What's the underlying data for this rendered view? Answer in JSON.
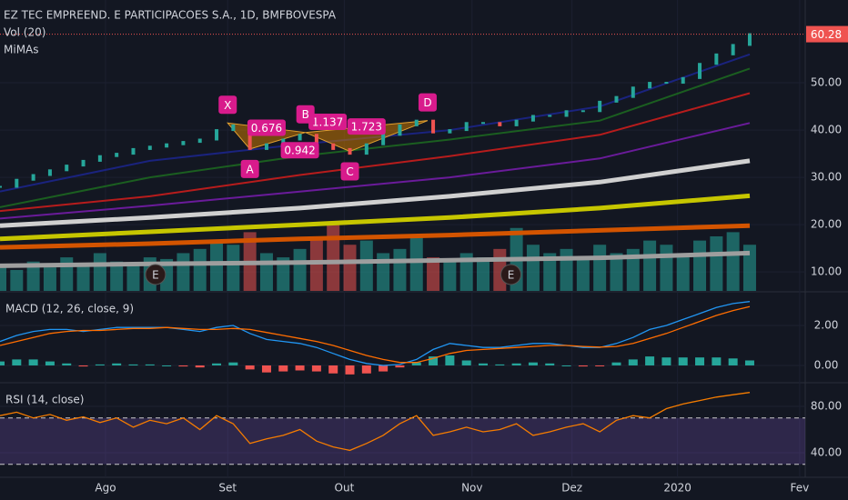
{
  "chart_data": [
    {
      "type": "candlestick",
      "title": "EZ TEC EMPREEND. E PARTICIPACOES S.A., 1D, BMFBOVESPA",
      "volume_label": "Vol (20)",
      "ma_label": "MiMAs",
      "x": [
        0,
        3,
        6,
        9,
        12,
        15,
        18,
        21,
        24,
        27,
        30,
        33,
        36,
        39,
        42,
        45,
        48,
        51,
        54,
        57,
        60,
        63,
        66,
        69,
        72,
        75,
        78,
        81,
        84,
        87,
        90,
        93,
        96,
        99,
        102,
        105,
        108,
        111,
        114,
        117,
        120,
        123,
        126,
        129,
        132,
        135
      ],
      "values": [
        28,
        29.5,
        30.5,
        31.5,
        32.5,
        33.5,
        34.5,
        35,
        36,
        36.5,
        37,
        37.5,
        38,
        40,
        41,
        36,
        37,
        38,
        39,
        37,
        36,
        35,
        37,
        39,
        41,
        42,
        39.5,
        40,
        41.5,
        41.5,
        41,
        42,
        43,
        43,
        44,
        44,
        46,
        47,
        49,
        50,
        50,
        51,
        54,
        56,
        58,
        60.28
      ],
      "up_color": "#26a69a",
      "down_color": "#ef5350",
      "volume": [
        30,
        25,
        35,
        28,
        40,
        30,
        45,
        35,
        30,
        40,
        38,
        45,
        50,
        60,
        55,
        70,
        45,
        40,
        50,
        65,
        80,
        55,
        60,
        45,
        50,
        65,
        40,
        35,
        45,
        40,
        50,
        75,
        55,
        45,
        50,
        40,
        55,
        45,
        50,
        60,
        55,
        45,
        60,
        65,
        70,
        55
      ],
      "vlim": [
        0,
        130
      ],
      "ma": [
        {
          "color": "#1a237e",
          "x": [
            0,
            27,
            54,
            81,
            108,
            135
          ],
          "values": [
            27,
            33.5,
            37,
            40,
            45,
            56
          ]
        },
        {
          "color": "#1b5e20",
          "x": [
            0,
            27,
            54,
            81,
            108,
            135
          ],
          "values": [
            23.7,
            30,
            34.5,
            38,
            42,
            53
          ]
        },
        {
          "color": "#b71c1c",
          "x": [
            0,
            27,
            54,
            81,
            108,
            135
          ],
          "values": [
            22.9,
            26,
            30.5,
            34.5,
            39,
            47.8
          ]
        },
        {
          "color": "#6a1b9a",
          "x": [
            0,
            27,
            54,
            81,
            108,
            135
          ],
          "values": [
            21.3,
            24,
            27,
            30,
            34,
            41.5
          ]
        },
        {
          "color": "#d0d0d0",
          "x": [
            0,
            27,
            54,
            81,
            108,
            135
          ],
          "values": [
            19.8,
            21.5,
            23.5,
            26,
            29,
            33.5
          ]
        },
        {
          "color": "#c6c600",
          "x": [
            0,
            27,
            54,
            81,
            108,
            135
          ],
          "values": [
            17,
            18.5,
            20,
            21.5,
            23.5,
            26.1
          ]
        },
        {
          "color": "#d35400",
          "x": [
            0,
            27,
            54,
            81,
            108,
            135
          ],
          "values": [
            15.2,
            16,
            17,
            17.8,
            18.8,
            19.8
          ]
        },
        {
          "color": "#9e9e9e",
          "x": [
            0,
            27,
            54,
            81,
            108,
            135
          ],
          "values": [
            11.3,
            11.7,
            12,
            12.5,
            13,
            14
          ]
        }
      ],
      "pattern": {
        "points": [
          {
            "label": "X",
            "x": 41,
            "y": 41.5
          },
          {
            "label": "A",
            "x": 45,
            "y": 36
          },
          {
            "label": "B",
            "x": 55,
            "y": 39.5
          },
          {
            "label": "C",
            "x": 63,
            "y": 35.5
          },
          {
            "label": "D",
            "x": 77,
            "y": 42
          }
        ],
        "ratios": [
          0.676,
          1.137,
          0.942,
          1.723
        ],
        "color": "#d81b8c"
      },
      "events": [
        {
          "x": 28,
          "label": "E"
        },
        {
          "x": 92,
          "label": "E"
        }
      ],
      "xlim": [
        0,
        145
      ],
      "ylim": [
        6,
        67.5
      ],
      "yticks": [
        {
          "value": 10,
          "label": "10.00"
        },
        {
          "value": 20,
          "label": "20.00"
        },
        {
          "value": 30,
          "label": "30.00"
        },
        {
          "value": 40,
          "label": "40.00"
        },
        {
          "value": 50,
          "label": "50.00"
        }
      ],
      "grid": true
    },
    {
      "type": "line",
      "title": "MACD (12, 26, close, 9)",
      "series": [
        {
          "color": "#2196f3",
          "values": [
            1.2,
            1.5,
            1.7,
            1.8,
            1.8,
            1.7,
            1.8,
            1.9,
            1.9,
            1.9,
            1.9,
            1.8,
            1.7,
            1.9,
            2.0,
            1.6,
            1.3,
            1.2,
            1.1,
            0.9,
            0.6,
            0.3,
            0.1,
            0.0,
            0.05,
            0.3,
            0.8,
            1.1,
            1.0,
            0.9,
            0.9,
            1.0,
            1.1,
            1.1,
            1.0,
            0.9,
            0.9,
            1.1,
            1.4,
            1.8,
            2.0,
            2.3,
            2.6,
            2.9,
            3.1,
            3.2
          ]
        },
        {
          "color": "#ff6d00",
          "values": [
            1.0,
            1.2,
            1.4,
            1.6,
            1.7,
            1.75,
            1.75,
            1.8,
            1.85,
            1.85,
            1.9,
            1.85,
            1.8,
            1.8,
            1.85,
            1.8,
            1.65,
            1.5,
            1.35,
            1.2,
            1.0,
            0.75,
            0.5,
            0.3,
            0.15,
            0.15,
            0.35,
            0.6,
            0.75,
            0.8,
            0.85,
            0.9,
            0.95,
            1.0,
            1.0,
            0.95,
            0.92,
            0.95,
            1.1,
            1.35,
            1.6,
            1.9,
            2.2,
            2.5,
            2.75,
            2.95
          ]
        }
      ],
      "histogram": [
        0.2,
        0.3,
        0.3,
        0.2,
        0.1,
        -0.05,
        0.05,
        0.1,
        0.05,
        0.05,
        0,
        -0.05,
        -0.1,
        0.1,
        0.15,
        -0.2,
        -0.35,
        -0.3,
        -0.25,
        -0.3,
        -0.4,
        -0.45,
        -0.4,
        -0.3,
        -0.1,
        0.15,
        0.45,
        0.5,
        0.25,
        0.1,
        0.05,
        0.1,
        0.15,
        0.1,
        0,
        -0.05,
        -0.02,
        0.15,
        0.3,
        0.45,
        0.4,
        0.4,
        0.4,
        0.4,
        0.35,
        0.25
      ],
      "ylim": [
        -0.82,
        3.64
      ],
      "yticks": [
        {
          "value": 0,
          "label": "0.00"
        },
        {
          "value": 2,
          "label": "2.00"
        }
      ]
    },
    {
      "type": "line",
      "title": "RSI (14, close)",
      "series": [
        {
          "color": "#f57c00",
          "values": [
            72,
            75,
            70,
            73,
            68,
            71,
            66,
            70,
            62,
            68,
            65,
            70,
            60,
            72,
            65,
            48,
            52,
            55,
            60,
            50,
            45,
            42,
            48,
            55,
            65,
            72,
            55,
            58,
            62,
            58,
            60,
            65,
            55,
            58,
            62,
            65,
            58,
            68,
            72,
            70,
            78,
            82,
            85,
            88,
            90,
            92
          ]
        }
      ],
      "band": [
        30,
        70
      ],
      "ylim": [
        18.8,
        99.6
      ],
      "yticks": [
        {
          "value": 40,
          "label": "40.00"
        },
        {
          "value": 80,
          "label": "80.00"
        }
      ],
      "xticks": [
        {
          "value": 19,
          "label": "Ago"
        },
        {
          "value": 41,
          "label": "Set"
        },
        {
          "value": 62,
          "label": "Out"
        },
        {
          "value": 85,
          "label": "Nov"
        },
        {
          "value": 103,
          "label": "Dez"
        },
        {
          "value": 122,
          "label": "2020"
        },
        {
          "value": 144,
          "label": "Fev"
        }
      ]
    }
  ]
}
